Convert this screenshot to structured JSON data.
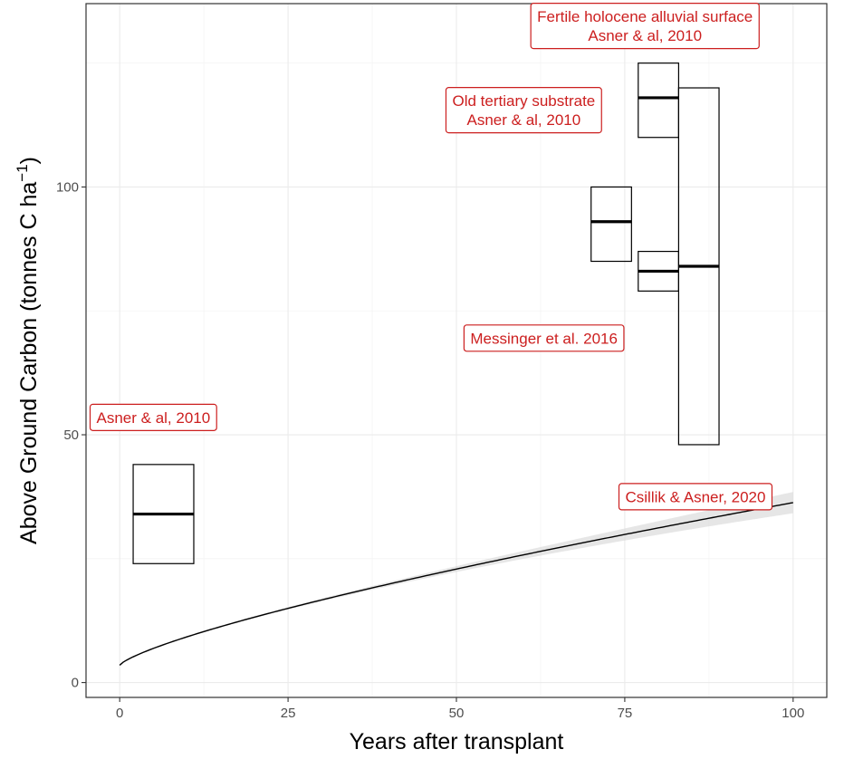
{
  "chart_data": {
    "type": "line",
    "title": "",
    "xlabel": "Years after transplant",
    "ylabel_main": "Above Ground Carbon (tonnes C ha",
    "ylabel_sup": "−1",
    "ylabel_close": ")",
    "xlim": [
      -5,
      105
    ],
    "ylim": [
      -3,
      137
    ],
    "xticks": [
      0,
      25,
      50,
      75,
      100
    ],
    "yticks": [
      0,
      50,
      100
    ],
    "grid": true,
    "legend": "none",
    "colors": {
      "annotation": "#cc1f1f",
      "line": "#000000",
      "ribbon": "#d9d9d9",
      "grid": "#ebebeb"
    },
    "curve": {
      "name": "fitted growth curve",
      "model": "power",
      "a": 3.5,
      "b": 0.758,
      "x_range": [
        0,
        100
      ],
      "ribbon_halfwidth_at_max": 2.0
    },
    "boxes": [
      {
        "xmin": 2,
        "xmax": 11,
        "ymin": 24,
        "ymax": 44,
        "median": 34
      },
      {
        "xmin": 70,
        "xmax": 76,
        "ymin": 85,
        "ymax": 100,
        "median": 93
      },
      {
        "xmin": 77,
        "xmax": 83,
        "ymin": 79,
        "ymax": 87,
        "median": 83
      },
      {
        "xmin": 77,
        "xmax": 83,
        "ymin": 110,
        "ymax": 125,
        "median": 118
      },
      {
        "xmin": 83,
        "xmax": 89,
        "ymin": 48,
        "ymax": 120,
        "median": 84
      }
    ],
    "annotations": [
      {
        "lines": [
          "Asner & al, 2010"
        ],
        "x": 5,
        "y": 53.5
      },
      {
        "lines": [
          "Old tertiary substrate",
          "Asner & al, 2010"
        ],
        "x": 60,
        "y": 115.5
      },
      {
        "lines": [
          "Fertile holocene alluvial surface",
          "Asner & al, 2010"
        ],
        "x": 78,
        "y": 132.5
      },
      {
        "lines": [
          "Messinger et al. 2016"
        ],
        "x": 63,
        "y": 69.5
      },
      {
        "lines": [
          "Csillik & Asner, 2020"
        ],
        "x": 85.5,
        "y": 37.5
      }
    ]
  }
}
